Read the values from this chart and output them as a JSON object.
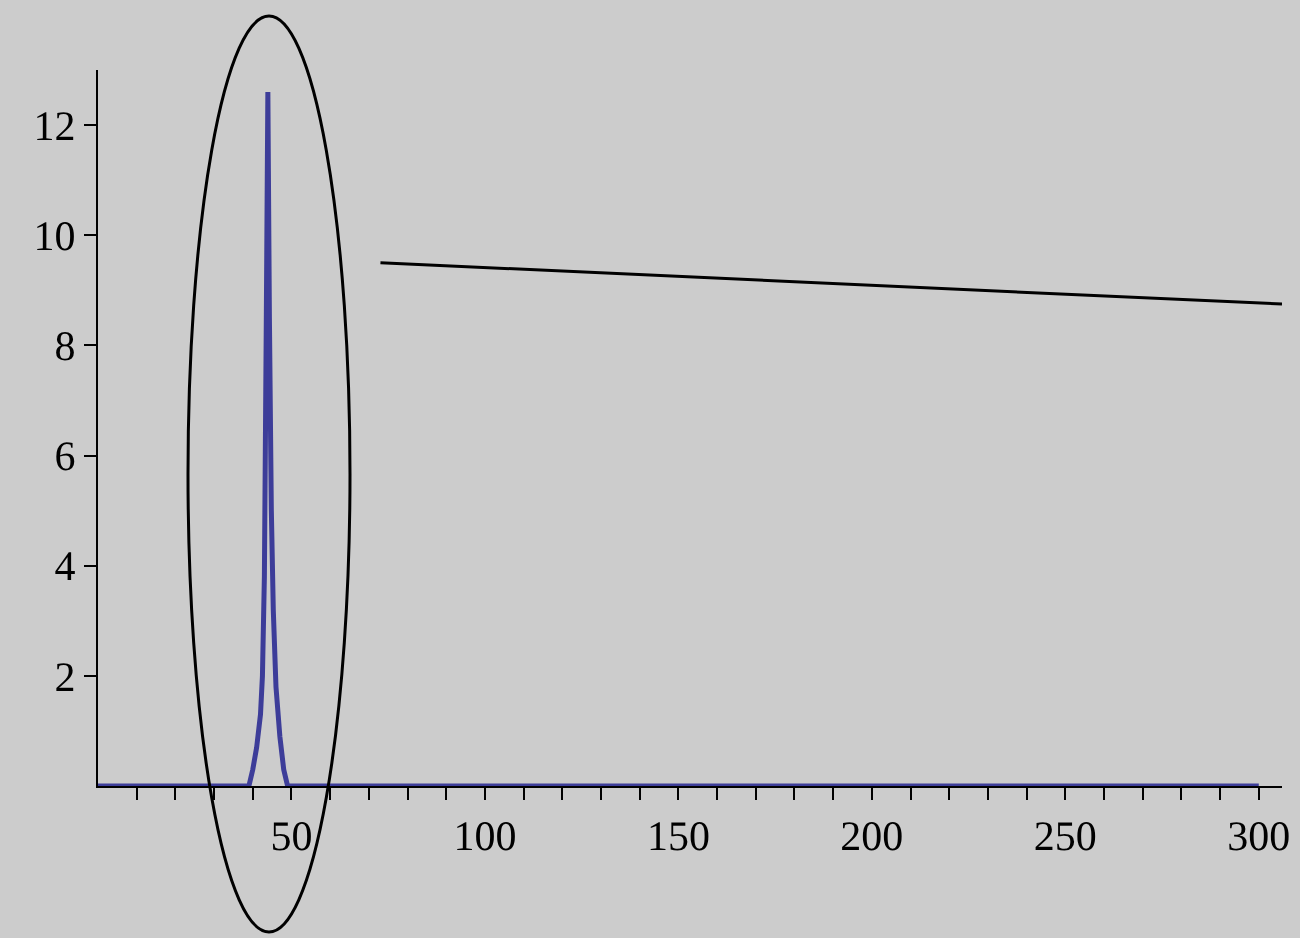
{
  "chart_data": {
    "type": "line",
    "x": [
      0,
      39,
      40,
      41,
      42,
      42.5,
      43,
      43.5,
      43.9,
      44.3,
      44.8,
      45.3,
      46,
      47,
      48,
      49,
      300
    ],
    "series": [
      {
        "color": "#3d3d99",
        "values": [
          0,
          0,
          0.3,
          0.7,
          1.3,
          2.0,
          3.8,
          8.5,
          12.6,
          8.5,
          5.0,
          3.2,
          1.8,
          0.9,
          0.3,
          0,
          0
        ]
      },
      {
        "type": "line",
        "color": "#000000",
        "x": [
          73,
          306
        ],
        "values": [
          9.5,
          8.75
        ]
      }
    ],
    "xlim": [
      0,
      306
    ],
    "ylim": [
      0,
      13
    ],
    "xticks": [
      {
        "value": 10,
        "label": null
      },
      {
        "value": 20,
        "label": null
      },
      {
        "value": 30,
        "label": null
      },
      {
        "value": 40,
        "label": null
      },
      50,
      {
        "value": 60,
        "label": null
      },
      {
        "value": 70,
        "label": null
      },
      {
        "value": 80,
        "label": null
      },
      {
        "value": 90,
        "label": null
      },
      100,
      {
        "value": 110,
        "label": null
      },
      {
        "value": 120,
        "label": null
      },
      {
        "value": 130,
        "label": null
      },
      {
        "value": 140,
        "label": null
      },
      150,
      {
        "value": 160,
        "label": null
      },
      {
        "value": 170,
        "label": null
      },
      {
        "value": 180,
        "label": null
      },
      {
        "value": 190,
        "label": null
      },
      200,
      {
        "value": 210,
        "label": null
      },
      {
        "value": 220,
        "label": null
      },
      {
        "value": 230,
        "label": null
      },
      {
        "value": 240,
        "label": null
      },
      250,
      {
        "value": 260,
        "label": null
      },
      {
        "value": 270,
        "label": null
      },
      {
        "value": 280,
        "label": null
      },
      {
        "value": 290,
        "label": null
      },
      300
    ],
    "yticks": [
      2,
      4,
      6,
      8,
      10,
      12
    ],
    "grid": false,
    "marker": "none",
    "line_style": "solid"
  }
}
